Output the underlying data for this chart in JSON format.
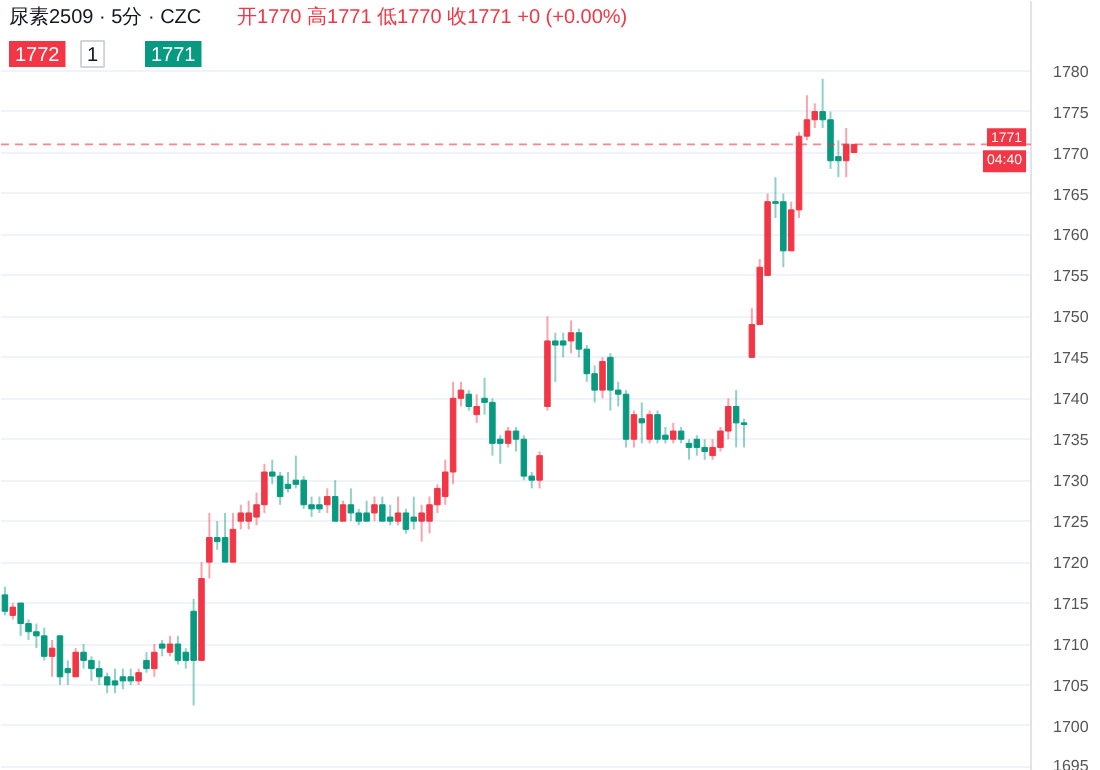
{
  "chart_data": {
    "type": "candlestick",
    "title": "尿素2509 · 5分 · CZC",
    "subtitle": "开1770 高1771 低1770 收1771 +0 (+0.00%)",
    "annotations": [
      "1772",
      "1",
      "1771",
      "04:40"
    ],
    "categories": [
      null,
      null,
      null,
      null,
      null,
      null,
      null,
      null,
      null,
      null,
      null,
      null,
      null,
      null,
      null,
      null,
      null,
      null,
      null,
      null,
      null,
      null,
      null,
      null,
      null,
      null,
      null,
      null,
      null,
      null,
      null,
      null,
      null,
      null,
      null,
      null,
      null,
      null,
      null,
      null,
      null,
      null,
      null,
      null,
      null,
      null,
      null,
      null,
      null,
      null,
      null,
      null,
      null,
      null,
      null,
      null,
      null,
      null,
      null,
      null,
      null,
      null,
      null,
      null,
      null,
      null,
      null,
      null,
      null,
      null,
      null,
      null,
      null,
      null,
      null,
      null,
      null,
      null,
      null,
      null,
      null,
      null,
      null,
      null,
      null,
      null,
      null,
      null,
      null,
      null,
      null,
      null,
      null,
      null,
      null,
      null,
      null,
      null,
      null,
      null,
      null,
      null,
      null,
      null,
      null,
      null,
      null,
      null,
      null,
      null,
      null,
      null,
      null,
      null,
      null,
      null,
      null,
      null,
      null,
      null,
      null,
      null,
      null,
      null,
      null,
      null,
      null,
      null,
      null,
      null,
      null
    ],
    "ohlc": [
      [
        1716,
        1717,
        1713.5,
        1714
      ],
      [
        1713.5,
        1715,
        1713,
        1714.5
      ],
      [
        1715,
        1715,
        1711,
        1712.5
      ],
      [
        1712.5,
        1713,
        1710.5,
        1711.5
      ],
      [
        1711.5,
        1712.5,
        1709.5,
        1711
      ],
      [
        1711,
        1712,
        1708,
        1708.5
      ],
      [
        1708.5,
        1710.5,
        1706,
        1709.5
      ],
      [
        1711,
        1711,
        1705,
        1706
      ],
      [
        1707,
        1708,
        1705,
        1706.5
      ],
      [
        1706,
        1709.5,
        1706,
        1709
      ],
      [
        1709,
        1710,
        1707,
        1708
      ],
      [
        1708,
        1708.5,
        1705.5,
        1707
      ],
      [
        1707,
        1708,
        1705,
        1706
      ],
      [
        1706,
        1706.5,
        1704,
        1705
      ],
      [
        1705.5,
        1707,
        1704,
        1705
      ],
      [
        1706,
        1707,
        1704.5,
        1705.5
      ],
      [
        1706,
        1707,
        1705,
        1705.5
      ],
      [
        1705.5,
        1707,
        1705,
        1706.5
      ],
      [
        1708,
        1709,
        1706.5,
        1707
      ],
      [
        1707,
        1710,
        1706,
        1709
      ],
      [
        1710,
        1710.5,
        1708.5,
        1709.5
      ],
      [
        1709,
        1711,
        1708.5,
        1710
      ],
      [
        1710,
        1711,
        1707.5,
        1708
      ],
      [
        1709,
        1709.5,
        1707,
        1708
      ],
      [
        1714,
        1715.5,
        1702.5,
        1708
      ],
      [
        1708,
        1720,
        1708,
        1718
      ],
      [
        1720,
        1726,
        1718,
        1723
      ],
      [
        1723,
        1725,
        1721.5,
        1722.5
      ],
      [
        1723,
        1726,
        1720,
        1720
      ],
      [
        1720,
        1726,
        1720,
        1724
      ],
      [
        1725,
        1727,
        1724,
        1726
      ],
      [
        1725,
        1727.5,
        1724,
        1726
      ],
      [
        1725.5,
        1728.5,
        1724.5,
        1727
      ],
      [
        1727,
        1732,
        1726,
        1731
      ],
      [
        1731,
        1732.5,
        1729.5,
        1730.5
      ],
      [
        1730.5,
        1731,
        1727,
        1728
      ],
      [
        1729.5,
        1731,
        1728.5,
        1729
      ],
      [
        1730,
        1733,
        1729,
        1729.5
      ],
      [
        1730,
        1730.5,
        1726.5,
        1727
      ],
      [
        1727,
        1728,
        1725.5,
        1726.5
      ],
      [
        1727,
        1728,
        1726,
        1726.5
      ],
      [
        1727,
        1729,
        1726,
        1728
      ],
      [
        1728,
        1730,
        1725,
        1725
      ],
      [
        1725,
        1727.5,
        1725,
        1727
      ],
      [
        1727,
        1729,
        1725,
        1726
      ],
      [
        1726,
        1726.5,
        1724.5,
        1725
      ],
      [
        1726,
        1727.5,
        1725,
        1725
      ],
      [
        1726,
        1728,
        1725,
        1727
      ],
      [
        1727,
        1728,
        1725,
        1725
      ],
      [
        1725.5,
        1727,
        1724.5,
        1725
      ],
      [
        1725,
        1728,
        1724.5,
        1726
      ],
      [
        1726,
        1726.5,
        1723.5,
        1724
      ],
      [
        1725.5,
        1728,
        1724,
        1725
      ],
      [
        1725,
        1727,
        1722.5,
        1726
      ],
      [
        1725,
        1728,
        1723.5,
        1727
      ],
      [
        1727,
        1729.5,
        1726,
        1729
      ],
      [
        1728,
        1732.5,
        1727,
        1731
      ],
      [
        1731,
        1742,
        1729.5,
        1740
      ],
      [
        1740,
        1742,
        1739,
        1741
      ],
      [
        1740.5,
        1741,
        1738.5,
        1739
      ],
      [
        1738,
        1740.5,
        1737,
        1739
      ],
      [
        1740,
        1742.5,
        1738,
        1739.5
      ],
      [
        1739.5,
        1740,
        1733,
        1734.5
      ],
      [
        1735,
        1735.5,
        1732,
        1734.5
      ],
      [
        1734.5,
        1736.5,
        1734,
        1736
      ],
      [
        1736,
        1736.5,
        1733.5,
        1735
      ],
      [
        1735,
        1735.5,
        1730,
        1730.5
      ],
      [
        1730.5,
        1731,
        1729,
        1730
      ],
      [
        1730,
        1733.5,
        1729,
        1733
      ],
      [
        1739,
        1750,
        1738.5,
        1747
      ],
      [
        1747,
        1748,
        1742,
        1746.5
      ],
      [
        1747,
        1748,
        1745,
        1746.5
      ],
      [
        1747,
        1749.5,
        1745.5,
        1748
      ],
      [
        1748,
        1748.5,
        1745,
        1746
      ],
      [
        1746,
        1746.5,
        1742,
        1743
      ],
      [
        1743,
        1744,
        1739.5,
        1741
      ],
      [
        1741,
        1745,
        1740,
        1744.5
      ],
      [
        1745,
        1745.5,
        1738.5,
        1741
      ],
      [
        1741,
        1742,
        1739,
        1740.5
      ],
      [
        1740.5,
        1741,
        1734,
        1735
      ],
      [
        1735,
        1738.5,
        1734,
        1738
      ],
      [
        1737.5,
        1739.5,
        1734.5,
        1737
      ],
      [
        1735,
        1738.5,
        1734.5,
        1738
      ],
      [
        1738,
        1738.5,
        1734.5,
        1735
      ],
      [
        1735.5,
        1736.5,
        1734.5,
        1735
      ],
      [
        1735,
        1737,
        1734.5,
        1736
      ],
      [
        1736,
        1736.5,
        1734.5,
        1735
      ],
      [
        1734.5,
        1735,
        1732.5,
        1734
      ],
      [
        1735,
        1735.5,
        1733,
        1734
      ],
      [
        1734,
        1735,
        1732.5,
        1733.5
      ],
      [
        1733,
        1735,
        1732.5,
        1734
      ],
      [
        1734,
        1736.5,
        1733.5,
        1736
      ],
      [
        1736,
        1740,
        1735,
        1739
      ],
      [
        1739,
        1741,
        1734,
        1737
      ],
      [
        1737,
        1737.5,
        1734,
        1736.8
      ],
      [
        1745,
        1751,
        1745,
        1749
      ],
      [
        1749,
        1757,
        1749,
        1756
      ],
      [
        1755,
        1765,
        1755,
        1764
      ],
      [
        1764,
        1767,
        1762,
        1763.8
      ],
      [
        1764,
        1765,
        1756,
        1758
      ],
      [
        1758,
        1764,
        1758,
        1763
      ],
      [
        1763,
        1772.5,
        1762,
        1772
      ],
      [
        1772,
        1777,
        1771.5,
        1774
      ],
      [
        1774,
        1776,
        1773,
        1775
      ],
      [
        1775,
        1779,
        1773,
        1774
      ],
      [
        1774,
        1775,
        1768,
        1769
      ],
      [
        1769.5,
        1771.5,
        1767,
        1769
      ],
      [
        1769,
        1773,
        1767,
        1771
      ],
      [
        1770,
        1771,
        1770,
        1771
      ],
      null,
      null,
      null,
      null,
      null,
      null,
      null,
      null,
      null,
      null,
      null,
      null,
      null,
      null,
      null,
      null,
      null,
      null,
      null,
      null,
      null,
      null
    ],
    "colors": [
      "#089981",
      "#f23645",
      "#089981",
      "#089981",
      "#089981",
      "#089981",
      "#f23645",
      "#089981",
      "#089981",
      "#f23645",
      "#089981",
      "#089981",
      "#089981",
      "#089981",
      "#089981",
      "#089981",
      "#089981",
      "#f23645",
      "#089981",
      "#f23645",
      "#089981",
      "#f23645",
      "#089981",
      "#089981",
      "#089981",
      "#f23645",
      "#f23645",
      "#089981",
      "#089981",
      "#f23645",
      "#f23645",
      "#f23645",
      "#f23645",
      "#f23645",
      "#089981",
      "#089981",
      "#089981",
      "#089981",
      "#089981",
      "#089981",
      "#089981",
      "#f23645",
      "#089981",
      "#f23645",
      "#089981",
      "#089981",
      "#089981",
      "#f23645",
      "#089981",
      "#089981",
      "#f23645",
      "#089981",
      "#089981",
      "#f23645",
      "#f23645",
      "#f23645",
      "#f23645",
      "#f23645",
      "#f23645",
      "#089981",
      "#f23645",
      "#089981",
      "#089981",
      "#089981",
      "#f23645",
      "#089981",
      "#089981",
      "#089981",
      "#f23645",
      "#f23645",
      "#089981",
      "#089981",
      "#f23645",
      "#089981",
      "#089981",
      "#089981",
      "#f23645",
      "#089981",
      "#089981",
      "#089981",
      "#f23645",
      "#089981",
      "#f23645",
      "#089981",
      "#089981",
      "#f23645",
      "#089981",
      "#089981",
      "#089981",
      "#089981",
      "#f23645",
      "#f23645",
      "#f23645",
      "#089981",
      "#089981",
      "#f23645",
      "#f23645",
      "#f23645",
      "#089981",
      "#089981",
      "#f23645",
      "#f23645",
      "#f23645",
      "#f23645",
      "#089981",
      "#089981",
      "#089981",
      "#f23645",
      "#f23645",
      null,
      null,
      null,
      null,
      null,
      null,
      null,
      null,
      null,
      null,
      null,
      null,
      null,
      null,
      null,
      null,
      null,
      null,
      null,
      null,
      null,
      null
    ],
    "ylim": [
      1694.5,
      1788.5
    ],
    "yticks": [
      1695,
      1700,
      1705,
      1710,
      1715,
      1720,
      1725,
      1730,
      1735,
      1740,
      1745,
      1750,
      1755,
      1760,
      1765,
      1770,
      1775,
      1780
    ],
    "tick_labels": "y",
    "grid": "y",
    "ref_lines": [
      {
        "axis": "y",
        "value": 1771,
        "label": "1771",
        "color": "#f23645",
        "line_style": "dashed"
      }
    ]
  }
}
